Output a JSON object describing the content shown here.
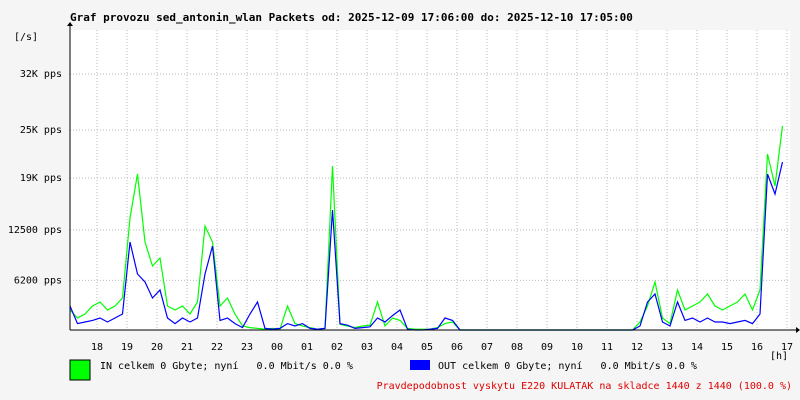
{
  "chart_data": {
    "type": "line",
    "title": "Graf provozu sed_antonin_wlan Packets od: 2025-12-09 17:06:00 do: 2025-12-10 17:05:00",
    "y_label": "[/s]",
    "x_label": "[h]",
    "x": [
      0,
      0.25,
      0.5,
      0.75,
      1,
      1.25,
      1.5,
      1.75,
      2,
      2.25,
      2.5,
      2.75,
      3,
      3.25,
      3.5,
      3.75,
      4,
      4.25,
      4.5,
      4.75,
      5,
      5.25,
      5.5,
      5.75,
      6,
      6.25,
      6.5,
      6.75,
      7,
      7.25,
      7.5,
      7.75,
      8,
      8.25,
      8.5,
      8.75,
      9,
      9.25,
      9.5,
      9.75,
      10,
      10.25,
      10.5,
      10.75,
      11,
      11.25,
      11.5,
      11.75,
      12,
      12.25,
      12.5,
      12.75,
      13,
      13.25,
      13.5,
      13.75,
      14,
      14.25,
      14.5,
      14.75,
      15,
      15.25,
      15.5,
      15.75,
      16,
      16.25,
      16.5,
      16.75,
      17,
      17.25,
      17.5,
      17.75,
      18,
      18.25,
      18.5,
      18.75,
      19,
      19.25,
      19.5,
      19.75,
      20,
      20.25,
      20.5,
      20.75,
      21,
      21.25,
      21.5,
      21.75,
      22,
      22.25,
      22.5,
      22.75,
      23,
      23.25,
      23.5,
      23.75
    ],
    "series": [
      {
        "name": "IN celkem 0 Gbyte; nyní   0.0 Mbit/s 0.0 %",
        "color": "#00ff00",
        "values": [
          2500,
          1500,
          2000,
          3000,
          3500,
          2500,
          3000,
          4000,
          14000,
          19500,
          11000,
          8000,
          9000,
          3000,
          2500,
          3000,
          2000,
          3500,
          13000,
          11000,
          3000,
          4000,
          2000,
          500,
          300,
          200,
          100,
          200,
          100,
          3000,
          800,
          500,
          300,
          100,
          200,
          20500,
          700,
          500,
          300,
          500,
          600,
          3500,
          500,
          1500,
          1200,
          200,
          100,
          100,
          100,
          300,
          800,
          1000,
          0,
          0,
          0,
          0,
          0,
          0,
          0,
          0,
          0,
          0,
          0,
          0,
          0,
          0,
          0,
          0,
          0,
          0,
          0,
          0,
          0,
          0,
          0,
          0,
          1000,
          3000,
          6000,
          1500,
          800,
          5000,
          2500,
          3000,
          3500,
          4500,
          3000,
          2500,
          3000,
          3500,
          4500,
          2500,
          5000,
          22000,
          18000,
          25500
        ]
      },
      {
        "name": "OUT celkem 0 Gbyte; nyní   0.0 Mbit/s 0.0 %",
        "color": "#0000ff",
        "values": [
          3000,
          800,
          1000,
          1200,
          1500,
          1000,
          1500,
          2000,
          11000,
          7000,
          6000,
          4000,
          5000,
          1500,
          800,
          1500,
          1000,
          1500,
          7000,
          10500,
          1200,
          1500,
          800,
          300,
          2000,
          3500,
          200,
          100,
          200,
          800,
          500,
          800,
          200,
          100,
          200,
          15000,
          800,
          600,
          200,
          300,
          400,
          1500,
          1000,
          1800,
          2500,
          100,
          0,
          0,
          100,
          200,
          1500,
          1200,
          0,
          0,
          0,
          0,
          0,
          0,
          0,
          0,
          0,
          0,
          0,
          0,
          0,
          0,
          0,
          0,
          0,
          0,
          0,
          0,
          0,
          0,
          0,
          0,
          500,
          3500,
          4500,
          1000,
          500,
          3500,
          1200,
          1500,
          1000,
          1500,
          1000,
          1000,
          800,
          1000,
          1200,
          800,
          2000,
          19500,
          17000,
          21000
        ]
      }
    ],
    "xlim": [
      0,
      24
    ],
    "xticks": [
      {
        "value": 0.9,
        "label": "18"
      },
      {
        "value": 1.9,
        "label": "19"
      },
      {
        "value": 2.9,
        "label": "20"
      },
      {
        "value": 3.9,
        "label": "21"
      },
      {
        "value": 4.9,
        "label": "22"
      },
      {
        "value": 5.9,
        "label": "23"
      },
      {
        "value": 6.9,
        "label": "00"
      },
      {
        "value": 7.9,
        "label": "01"
      },
      {
        "value": 8.9,
        "label": "02"
      },
      {
        "value": 9.9,
        "label": "03"
      },
      {
        "value": 10.9,
        "label": "04"
      },
      {
        "value": 11.9,
        "label": "05"
      },
      {
        "value": 12.9,
        "label": "06"
      },
      {
        "value": 13.9,
        "label": "07"
      },
      {
        "value": 14.9,
        "label": "08"
      },
      {
        "value": 15.9,
        "label": "09"
      },
      {
        "value": 16.9,
        "label": "10"
      },
      {
        "value": 17.9,
        "label": "11"
      },
      {
        "value": 18.9,
        "label": "12"
      },
      {
        "value": 19.9,
        "label": "13"
      },
      {
        "value": 20.9,
        "label": "14"
      },
      {
        "value": 21.9,
        "label": "15"
      },
      {
        "value": 22.9,
        "label": "16"
      },
      {
        "value": 23.9,
        "label": "17"
      }
    ],
    "ylim": [
      0,
      37500
    ],
    "yticks": [
      {
        "value": 6200,
        "label": "6200 pps"
      },
      {
        "value": 12500,
        "label": "12500 pps"
      },
      {
        "value": 19000,
        "label": "19K pps"
      },
      {
        "value": 25000,
        "label": "25K pps"
      },
      {
        "value": 32000,
        "label": "32K pps"
      }
    ],
    "grid": true,
    "footer": "Pravdepodobnost vyskytu E220 KULATAK na skladce 1440 z 1440 (100.0 %)"
  }
}
